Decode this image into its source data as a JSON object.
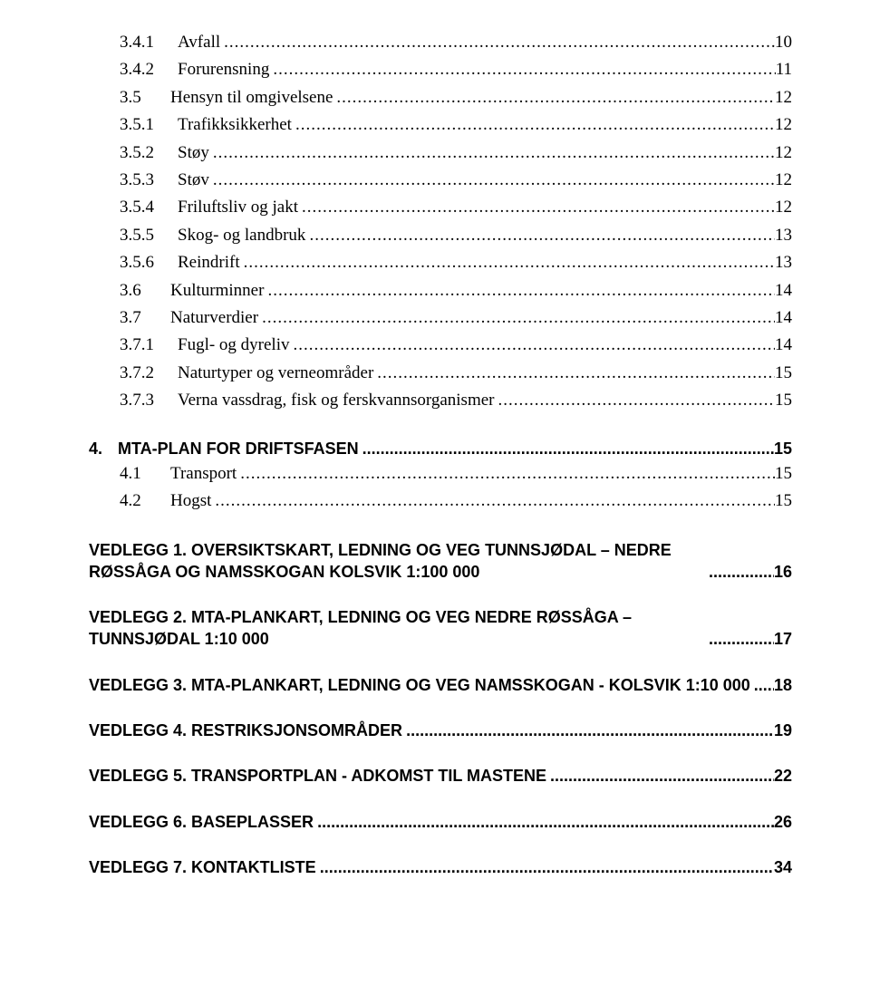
{
  "entries": [
    {
      "style": "normal",
      "indent": 2,
      "num": "3.4.1",
      "numClass": "num-wide",
      "text": "Avfall",
      "page": "10"
    },
    {
      "style": "normal",
      "indent": 2,
      "num": "3.4.2",
      "numClass": "num-wide",
      "text": "Forurensning",
      "page": "11"
    },
    {
      "style": "normal",
      "indent": 1,
      "num": "3.5",
      "numClass": "num-narrow",
      "text": "Hensyn til omgivelsene",
      "page": "12"
    },
    {
      "style": "normal",
      "indent": 2,
      "num": "3.5.1",
      "numClass": "num-wide",
      "text": "Trafikksikkerhet",
      "page": "12"
    },
    {
      "style": "normal",
      "indent": 2,
      "num": "3.5.2",
      "numClass": "num-wide",
      "text": "Støy",
      "page": "12"
    },
    {
      "style": "normal",
      "indent": 2,
      "num": "3.5.3",
      "numClass": "num-wide",
      "text": "Støv",
      "page": "12"
    },
    {
      "style": "normal",
      "indent": 2,
      "num": "3.5.4",
      "numClass": "num-wide",
      "text": "Friluftsliv og jakt",
      "page": "12"
    },
    {
      "style": "normal",
      "indent": 2,
      "num": "3.5.5",
      "numClass": "num-wide",
      "text": "Skog- og landbruk",
      "page": "13"
    },
    {
      "style": "normal",
      "indent": 2,
      "num": "3.5.6",
      "numClass": "num-wide",
      "text": "Reindrift",
      "page": "13"
    },
    {
      "style": "normal",
      "indent": 1,
      "num": "3.6",
      "numClass": "num-narrow",
      "text": "Kulturminner",
      "page": "14"
    },
    {
      "style": "normal",
      "indent": 1,
      "num": "3.7",
      "numClass": "num-narrow",
      "text": "Naturverdier",
      "page": "14"
    },
    {
      "style": "normal",
      "indent": 2,
      "num": "3.7.1",
      "numClass": "num-wide",
      "text": "Fugl- og dyreliv",
      "page": "14"
    },
    {
      "style": "normal",
      "indent": 2,
      "num": "3.7.2",
      "numClass": "num-wide",
      "text": "Naturtyper og verneområder",
      "page": "15"
    },
    {
      "style": "normal",
      "indent": 2,
      "num": "3.7.3",
      "numClass": "num-wide",
      "text": "Verna vassdrag, fisk og ferskvannsorganismer",
      "page": "15"
    },
    {
      "style": "bold",
      "num": "4.",
      "text": "MTA-PLAN FOR DRIFTSFASEN",
      "page": "15"
    },
    {
      "style": "normal",
      "indent": 1,
      "num": "4.1",
      "numClass": "num-narrow",
      "text": "Transport",
      "page": "15"
    },
    {
      "style": "normal",
      "indent": 1,
      "num": "4.2",
      "numClass": "num-narrow",
      "text": "Hogst",
      "page": "15"
    },
    {
      "style": "bold",
      "text": "VEDLEGG 1. OVERSIKTSKART, LEDNING OG VEG TUNNSJØDAL – NEDRE RØSSÅGA OG NAMSSKOGAN KOLSVIK 1:100 000",
      "page": "16",
      "multiline": true
    },
    {
      "style": "bold",
      "text": "VEDLEGG 2. MTA-PLANKART, LEDNING OG VEG NEDRE RØSSÅGA – TUNNSJØDAL    1:10 000",
      "page": "17",
      "multiline": true
    },
    {
      "style": "bold",
      "text": "VEDLEGG 3. MTA-PLANKART, LEDNING OG VEG NAMSSKOGAN - KOLSVIK   1:10 000",
      "page": "18"
    },
    {
      "style": "bold",
      "text": "VEDLEGG 4. RESTRIKSJONSOMRÅDER",
      "page": "19"
    },
    {
      "style": "bold",
      "text": "VEDLEGG 5. TRANSPORTPLAN - ADKOMST TIL MASTENE",
      "page": "22"
    },
    {
      "style": "bold",
      "text": "VEDLEGG 6. BASEPLASSER",
      "page": "26"
    },
    {
      "style": "bold",
      "text": "VEDLEGG 7. KONTAKTLISTE",
      "page": "34"
    }
  ]
}
